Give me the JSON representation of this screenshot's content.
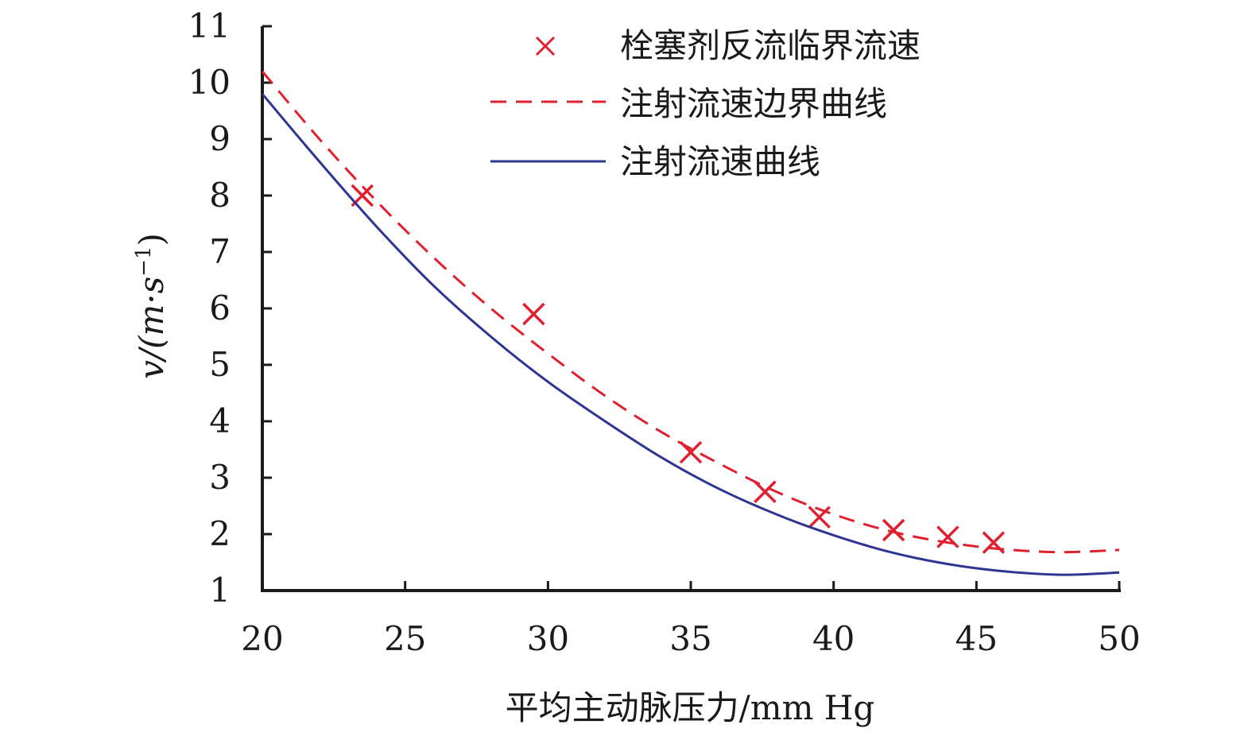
{
  "chart_data": {
    "type": "line",
    "title": "",
    "xlabel": "平均主动脉压力/mm Hg",
    "ylabel_main": "v/(m·s",
    "ylabel_sup": "−1",
    "ylabel_close": ")",
    "xlim": [
      20,
      50
    ],
    "ylim": [
      1,
      11
    ],
    "x_ticks": [
      20,
      25,
      30,
      35,
      40,
      45,
      50
    ],
    "y_ticks": [
      1,
      2,
      3,
      4,
      5,
      6,
      7,
      8,
      9,
      10,
      11
    ],
    "x_tick_labels": [
      "20",
      "25",
      "30",
      "35",
      "40",
      "45",
      "50"
    ],
    "y_tick_labels": [
      "1",
      "2",
      "3",
      "4",
      "5",
      "6",
      "7",
      "8",
      "9",
      "10",
      "11"
    ],
    "grid": false,
    "legend_position": "top-right",
    "series": [
      {
        "name": "栓塞剂反流临界流速",
        "style": "marker-x",
        "color": "#e0202e",
        "points": [
          [
            23.5,
            8.0
          ],
          [
            29.5,
            5.9
          ],
          [
            35.0,
            3.45
          ],
          [
            37.6,
            2.75
          ],
          [
            39.5,
            2.3
          ],
          [
            42.1,
            2.07
          ],
          [
            44.0,
            1.95
          ],
          [
            45.6,
            1.85
          ]
        ]
      },
      {
        "name": "注射流速边界曲线",
        "style": "dashed",
        "color": "#e0202e",
        "points": [
          [
            20,
            10.2
          ],
          [
            22,
            9.0
          ],
          [
            24,
            7.9
          ],
          [
            26,
            6.9
          ],
          [
            28,
            6.0
          ],
          [
            30,
            5.2
          ],
          [
            32,
            4.45
          ],
          [
            34,
            3.8
          ],
          [
            36,
            3.25
          ],
          [
            38,
            2.75
          ],
          [
            40,
            2.35
          ],
          [
            42,
            2.05
          ],
          [
            44,
            1.85
          ],
          [
            46,
            1.73
          ],
          [
            48,
            1.68
          ],
          [
            50,
            1.72
          ]
        ]
      },
      {
        "name": "注射流速曲线",
        "style": "solid",
        "color": "#2e3592",
        "points": [
          [
            20,
            9.8
          ],
          [
            22,
            8.6
          ],
          [
            24,
            7.45
          ],
          [
            26,
            6.4
          ],
          [
            28,
            5.5
          ],
          [
            30,
            4.7
          ],
          [
            32,
            4.0
          ],
          [
            34,
            3.35
          ],
          [
            36,
            2.8
          ],
          [
            38,
            2.35
          ],
          [
            40,
            1.98
          ],
          [
            42,
            1.68
          ],
          [
            44,
            1.47
          ],
          [
            46,
            1.34
          ],
          [
            48,
            1.28
          ],
          [
            50,
            1.32
          ]
        ]
      }
    ]
  }
}
